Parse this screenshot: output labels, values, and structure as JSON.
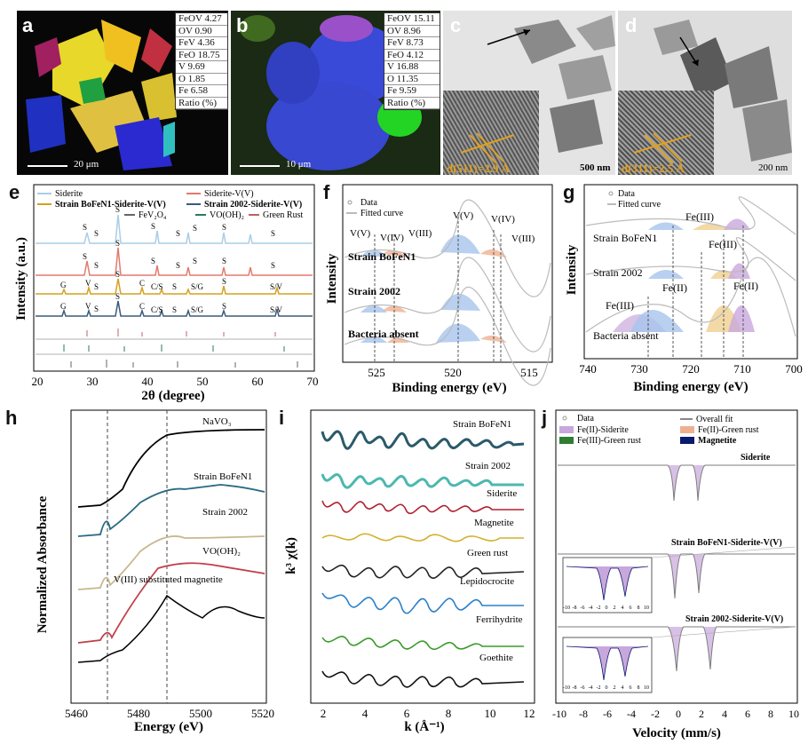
{
  "panels": {
    "a": {
      "label": "a",
      "table": [
        "FeOV 4.27",
        "OV 0.90",
        "FeV 4.36",
        "FeO 18.75",
        "V 9.69",
        "O 1.85",
        "Fe 6.58",
        "Ratio (%)"
      ],
      "scale": "20 μm"
    },
    "b": {
      "label": "b",
      "table": [
        "FeOV 15.11",
        "OV 8.96",
        "FeV 8.73",
        "FeO 4.12",
        "V 16.88",
        "O 11.35",
        "Fe 9.59",
        "Ratio (%)"
      ],
      "scale": "10 μm"
    },
    "c": {
      "label": "c",
      "dspacing": "d(511)=2.9 Å",
      "scale": "500 nm"
    },
    "d": {
      "label": "d",
      "dspacing": "d(311)=2.5 Å",
      "scale": "200 nm"
    },
    "e": {
      "label": "e",
      "legend": [
        "Siderite",
        "Siderite-V(V)",
        "Strain BoFeN1-Siderite-V(V)",
        "Strain 2002-Siderite-V(V)",
        "FeV₂O₄",
        "VO(OH)₂",
        "Green Rust"
      ],
      "xlabel": "2θ (degree)",
      "ylabel": "Intensity (a.u.)",
      "xticks": [
        "20",
        "30",
        "40",
        "50",
        "60",
        "70"
      ],
      "marks_row1": [
        "S",
        "S",
        "S",
        "S",
        "S",
        "S",
        "S",
        "S"
      ],
      "marks_row2": [
        "S",
        "S",
        "S",
        "S",
        "S",
        "S",
        "S",
        "S"
      ],
      "marks_row3": [
        "G",
        "V",
        "S",
        "S",
        "C",
        "C/S",
        "S",
        "S/G",
        "S",
        "S/V"
      ],
      "marks_row4": [
        "G",
        "V",
        "S",
        "S",
        "C",
        "C/S",
        "S",
        "S/G",
        "S",
        "S/V"
      ]
    },
    "f": {
      "label": "f",
      "legend": [
        "Data",
        "Fitted curve"
      ],
      "peaks": [
        "V(V)",
        "V(IV)",
        "V(III)",
        "V(V)",
        "V(IV)",
        "V(III)"
      ],
      "samples": [
        "Strain BoFeN1",
        "Strain 2002",
        "Bacteria absent"
      ],
      "xlabel": "Binding energy (eV)",
      "ylabel": "Intensity",
      "xticks": [
        "525",
        "520",
        "515"
      ]
    },
    "g": {
      "label": "g",
      "legend": [
        "Data",
        "Fitted curve"
      ],
      "peaks": [
        "Fe(III)",
        "Fe(III)",
        "Fe(II)",
        "Fe(II)",
        "Fe(III)"
      ],
      "samples": [
        "Strain BoFeN1",
        "Strain 2002",
        "Bacteria absent"
      ],
      "xlabel": "Binding energy (eV)",
      "ylabel": "Intensity",
      "xticks": [
        "740",
        "730",
        "720",
        "710",
        "700"
      ]
    },
    "h": {
      "label": "h",
      "samples": [
        "NaVO₃",
        "Strain BoFeN1",
        "Strain 2002",
        "VO(OH)₂",
        "V(III) substituted magnetite"
      ],
      "xlabel": "Energy (eV)",
      "ylabel": "Normalized Absorbance",
      "xticks": [
        "5460",
        "5480",
        "5500",
        "5520"
      ]
    },
    "i": {
      "label": "i",
      "samples": [
        "Strain BoFeN1",
        "Strain 2002",
        "Siderite",
        "Magnetite",
        "Green rust",
        "Lepidocrocite",
        "Ferrihydrite",
        "Goethite"
      ],
      "xlabel": "k (Å⁻¹)",
      "ylabel": "k³ χ(k)",
      "xticks": [
        "2",
        "4",
        "6",
        "8",
        "10",
        "12"
      ]
    },
    "j": {
      "label": "j",
      "legend": [
        "Data",
        "Overall fit",
        "Fe(II)-Siderite",
        "Fe(II)-Green rust",
        "Fe(III)-Green rust",
        "Magnetite"
      ],
      "samples": [
        "Siderite",
        "Strain BoFeN1-Siderite-V(V)",
        "Strain 2002-Siderite-V(V)"
      ],
      "xlabel": "Velocity (mm/s)",
      "xticks": [
        "-10",
        "-8",
        "-6",
        "-4",
        "-2",
        "0",
        "2",
        "4",
        "6",
        "8",
        "10"
      ],
      "inset_ticks": [
        "-10",
        "-8",
        "-6",
        "-4",
        "-2",
        "0",
        "2",
        "4",
        "6",
        "8",
        "10"
      ]
    }
  },
  "colors": {
    "siderite": "#a9cde6",
    "siderite_v": "#e27a6e",
    "bofen1": "#d4a020",
    "strain2002": "#3b5a7a",
    "purple": "#c8a8dc",
    "orange": "#f0b090",
    "green": "#2e7d32",
    "navy": "#0a1a6e"
  }
}
